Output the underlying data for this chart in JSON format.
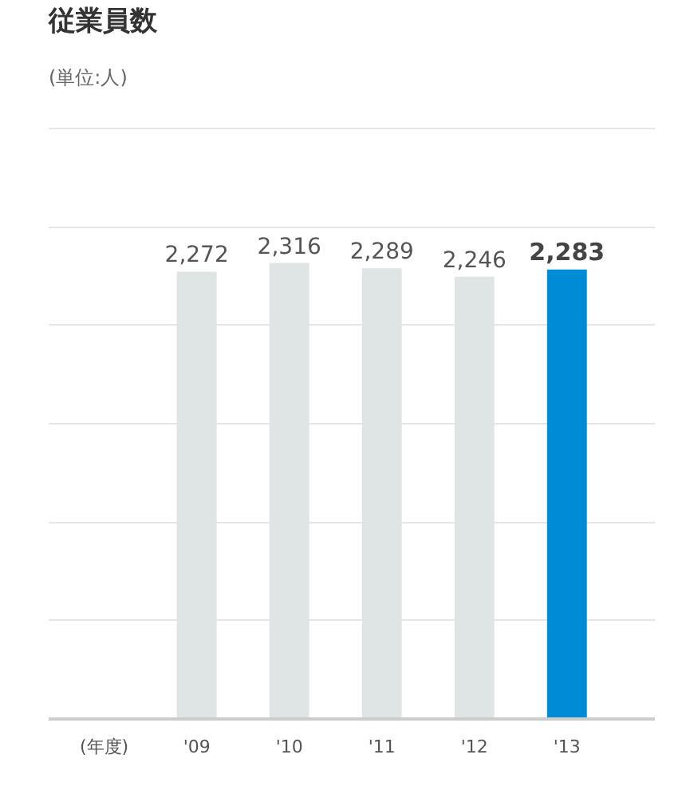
{
  "chart_data": {
    "type": "bar",
    "title": "従業員数",
    "subtitle": "(単位:人)",
    "xlabel": "(年度)",
    "categories": [
      "'09",
      "'10",
      "'11",
      "'12",
      "'13"
    ],
    "values": [
      2272,
      2316,
      2289,
      2246,
      2283
    ],
    "colors": [
      "#dfe5e5",
      "#dfe5e5",
      "#dfe5e5",
      "#dfe5e5",
      "#008bd6"
    ],
    "value_labels": [
      "2,272",
      "2,316",
      "2,289",
      "2,246",
      "2,283"
    ],
    "grid": "y",
    "tick_labels": "x"
  }
}
